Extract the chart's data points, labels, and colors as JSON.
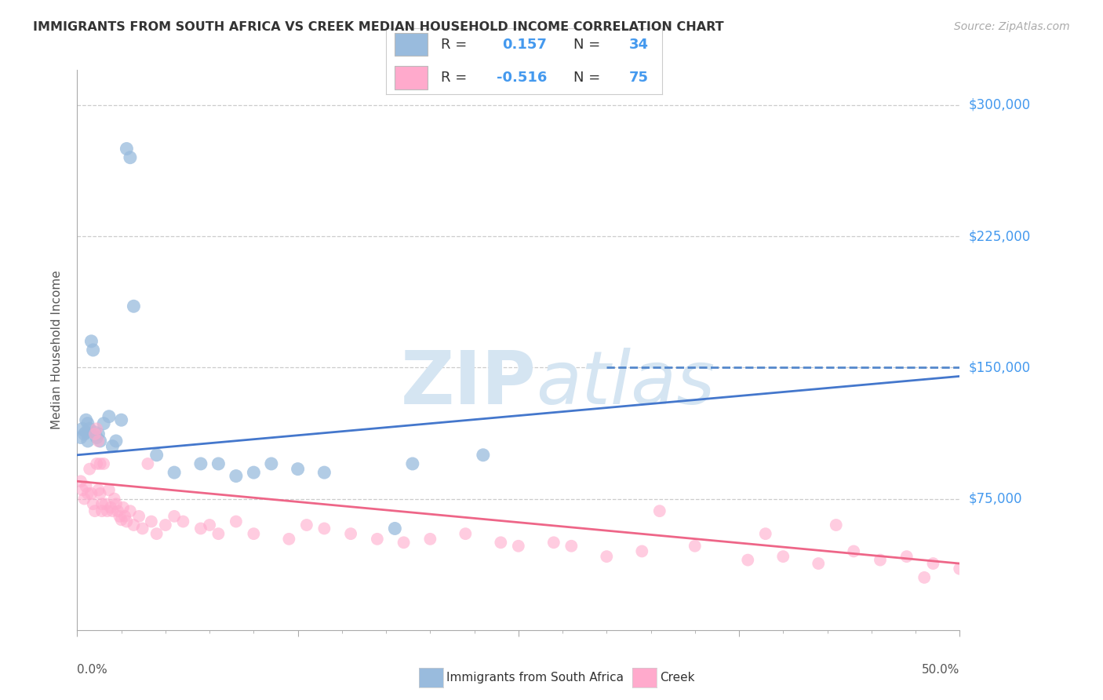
{
  "title": "IMMIGRANTS FROM SOUTH AFRICA VS CREEK MEDIAN HOUSEHOLD INCOME CORRELATION CHART",
  "source": "Source: ZipAtlas.com",
  "ylabel": "Median Household Income",
  "yticks": [
    0,
    75000,
    150000,
    225000,
    300000
  ],
  "ytick_labels": [
    "",
    "$75,000",
    "$150,000",
    "$225,000",
    "$300,000"
  ],
  "ylim": [
    0,
    320000
  ],
  "xlim": [
    0.0,
    50.0
  ],
  "xticks": [
    0.0,
    12.5,
    25.0,
    37.5,
    50.0
  ],
  "xtick_labels": [
    "0.0%",
    "",
    "",
    "",
    "50.0%"
  ],
  "blue_color": "#99BBDD",
  "pink_color": "#FFAACC",
  "blue_line_color": "#4477CC",
  "pink_line_color": "#EE6688",
  "dashed_line_color": "#5588CC",
  "watermark_color": "#D5E5F2",
  "title_color": "#333333",
  "ytick_color": "#4499EE",
  "source_color": "#AAAAAA",
  "legend_text_color": "#333333",
  "legend_value_color": "#4499EE",
  "blue_scatter_x": [
    0.2,
    0.3,
    0.4,
    0.5,
    0.5,
    0.6,
    0.6,
    0.7,
    0.8,
    0.9,
    1.0,
    1.1,
    1.2,
    1.3,
    1.5,
    1.8,
    2.0,
    2.2,
    2.5,
    2.8,
    3.0,
    3.2,
    4.5,
    5.5,
    7.0,
    8.0,
    9.0,
    10.0,
    11.0,
    12.5,
    14.0,
    18.0,
    19.0,
    23.0
  ],
  "blue_scatter_y": [
    110000,
    115000,
    112000,
    113000,
    120000,
    108000,
    118000,
    115000,
    165000,
    160000,
    113000,
    110000,
    112000,
    108000,
    118000,
    122000,
    105000,
    108000,
    120000,
    275000,
    270000,
    185000,
    100000,
    90000,
    95000,
    95000,
    88000,
    90000,
    95000,
    92000,
    90000,
    58000,
    95000,
    100000
  ],
  "pink_scatter_x": [
    0.2,
    0.3,
    0.4,
    0.5,
    0.6,
    0.7,
    0.8,
    0.9,
    1.0,
    1.0,
    1.1,
    1.1,
    1.2,
    1.2,
    1.3,
    1.3,
    1.4,
    1.4,
    1.5,
    1.6,
    1.7,
    1.8,
    1.9,
    2.0,
    2.1,
    2.2,
    2.3,
    2.4,
    2.5,
    2.6,
    2.7,
    2.8,
    3.0,
    3.2,
    3.5,
    3.7,
    4.0,
    4.2,
    4.5,
    5.0,
    5.5,
    6.0,
    7.0,
    7.5,
    8.0,
    9.0,
    10.0,
    12.0,
    13.0,
    14.0,
    15.5,
    17.0,
    18.5,
    20.0,
    22.0,
    24.0,
    25.0,
    27.0,
    28.0,
    30.0,
    32.0,
    35.0,
    38.0,
    40.0,
    42.0,
    44.0,
    45.5,
    47.0,
    48.5,
    50.0,
    33.0,
    39.0,
    43.0,
    48.0,
    50.5
  ],
  "pink_scatter_y": [
    85000,
    80000,
    75000,
    82000,
    78000,
    92000,
    78000,
    72000,
    68000,
    112000,
    115000,
    95000,
    108000,
    80000,
    95000,
    78000,
    72000,
    68000,
    95000,
    72000,
    68000,
    80000,
    70000,
    68000,
    75000,
    72000,
    68000,
    65000,
    63000,
    70000,
    65000,
    62000,
    68000,
    60000,
    65000,
    58000,
    95000,
    62000,
    55000,
    60000,
    65000,
    62000,
    58000,
    60000,
    55000,
    62000,
    55000,
    52000,
    60000,
    58000,
    55000,
    52000,
    50000,
    52000,
    55000,
    50000,
    48000,
    50000,
    48000,
    42000,
    45000,
    48000,
    40000,
    42000,
    38000,
    45000,
    40000,
    42000,
    38000,
    35000,
    68000,
    55000,
    60000,
    30000,
    32000
  ],
  "blue_trend": [
    0.0,
    50.0,
    100000,
    145000
  ],
  "pink_trend": [
    0.0,
    50.0,
    85000,
    38000
  ],
  "dashed_line": [
    30.0,
    50.0,
    150000
  ]
}
